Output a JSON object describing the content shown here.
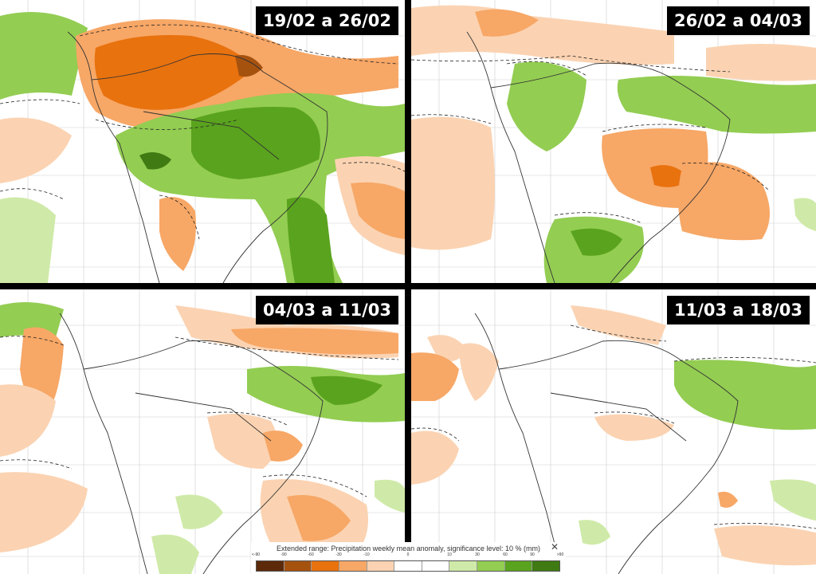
{
  "panels": [
    {
      "id": "p1",
      "date_label": "19/02 a 26/02"
    },
    {
      "id": "p2",
      "date_label": "26/02 a 04/03"
    },
    {
      "id": "p3",
      "date_label": "04/03 a 11/03"
    },
    {
      "id": "p4",
      "date_label": "11/03 a 18/03"
    }
  ],
  "legend": {
    "title": "Extended range: Precipitation weekly mean anomaly, significance level: 10 % (mm)",
    "ticks": [
      "<-90",
      "-90",
      "-60",
      "-30",
      "-10",
      "0",
      "10",
      "30",
      "60",
      "90",
      ">90"
    ],
    "colors": [
      "#5c2a09",
      "#a6520f",
      "#e8720e",
      "#f7a766",
      "#fbd3b2",
      "#ffffff",
      "#ffffff",
      "#cfeaa8",
      "#93cd52",
      "#5aa31e",
      "#3f7a12"
    ]
  },
  "close_icon": "close-icon"
}
